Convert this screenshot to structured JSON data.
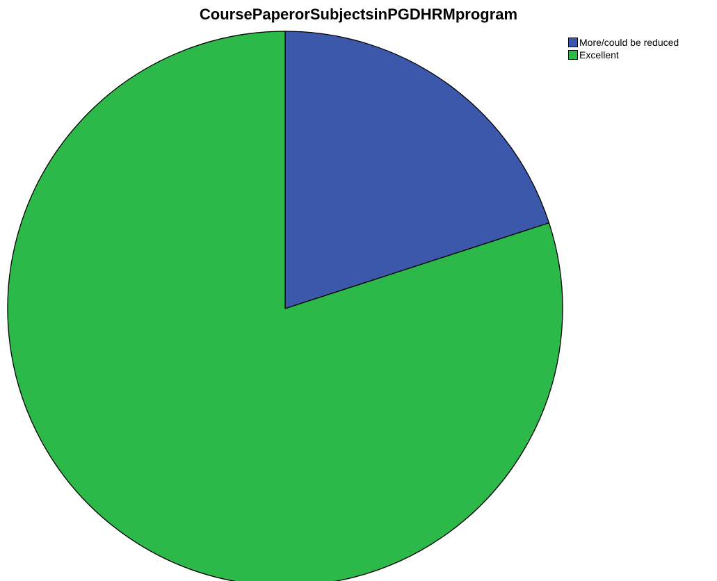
{
  "chart_data": {
    "type": "pie",
    "title": "CoursePaperorSubjectsinPGDHRMprogram",
    "legend_position": "top-right",
    "slices": [
      {
        "label": "More/could be reduced",
        "value": 20,
        "color": "#3c58aa"
      },
      {
        "label": "Excellent",
        "value": 80,
        "color": "#2db84a"
      }
    ],
    "start_angle": "12 o'clock",
    "direction": "clockwise",
    "slice_border_color": "#000000"
  }
}
